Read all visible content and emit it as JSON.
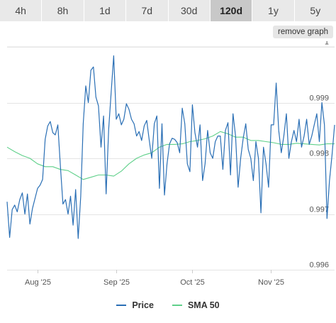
{
  "tabs": [
    {
      "label": "4h",
      "active": false
    },
    {
      "label": "8h",
      "active": false
    },
    {
      "label": "1d",
      "active": false
    },
    {
      "label": "7d",
      "active": false
    },
    {
      "label": "30d",
      "active": false
    },
    {
      "label": "120d",
      "active": true
    },
    {
      "label": "1y",
      "active": false
    },
    {
      "label": "5y",
      "active": false
    }
  ],
  "remove_graph_label": "remove graph",
  "legend": {
    "price_label": "Price",
    "sma_label": "SMA 50"
  },
  "colors": {
    "price": "#2a6fb5",
    "sma": "#5fd08a",
    "grid": "#e4e4e4"
  },
  "chart_data": {
    "type": "line",
    "title": "",
    "xlabel": "",
    "ylabel": "",
    "ylim": [
      0.996,
      1.0
    ],
    "y_ticks": [
      {
        "value": 1.0,
        "label": "1"
      },
      {
        "value": 0.999,
        "label": "0.999"
      },
      {
        "value": 0.998,
        "label": "0.998"
      },
      {
        "value": 0.997,
        "label": "0.997"
      },
      {
        "value": 0.996,
        "label": "0.996"
      }
    ],
    "x_range": [
      "2025-07-20",
      "2025-11-26"
    ],
    "x_ticks": [
      {
        "date": "2025-08-01",
        "label": "Aug '25"
      },
      {
        "date": "2025-09-01",
        "label": "Sep '25"
      },
      {
        "date": "2025-10-01",
        "label": "Oct '25"
      },
      {
        "date": "2025-11-01",
        "label": "Nov '25"
      }
    ],
    "grid": true,
    "legend_position": "bottom",
    "series": [
      {
        "name": "Price",
        "points": [
          [
            "2025-07-20",
            0.99722
          ],
          [
            "2025-07-21",
            0.99658
          ],
          [
            "2025-07-22",
            0.99708
          ],
          [
            "2025-07-23",
            0.99716
          ],
          [
            "2025-07-24",
            0.99704
          ],
          [
            "2025-07-25",
            0.99726
          ],
          [
            "2025-07-26",
            0.99738
          ],
          [
            "2025-07-27",
            0.997
          ],
          [
            "2025-07-28",
            0.99736
          ],
          [
            "2025-07-29",
            0.99682
          ],
          [
            "2025-07-30",
            0.9971
          ],
          [
            "2025-07-31",
            0.99728
          ],
          [
            "2025-08-01",
            0.99746
          ],
          [
            "2025-08-02",
            0.99752
          ],
          [
            "2025-08-03",
            0.99762
          ],
          [
            "2025-08-04",
            0.99834
          ],
          [
            "2025-08-05",
            0.99858
          ],
          [
            "2025-08-06",
            0.99866
          ],
          [
            "2025-08-07",
            0.99846
          ],
          [
            "2025-08-08",
            0.99842
          ],
          [
            "2025-08-09",
            0.9986
          ],
          [
            "2025-08-10",
            0.99786
          ],
          [
            "2025-08-11",
            0.99718
          ],
          [
            "2025-08-12",
            0.99726
          ],
          [
            "2025-08-13",
            0.997
          ],
          [
            "2025-08-14",
            0.99732
          ],
          [
            "2025-08-15",
            0.9968
          ],
          [
            "2025-08-16",
            0.99744
          ],
          [
            "2025-08-17",
            0.99656
          ],
          [
            "2025-08-18",
            0.99732
          ],
          [
            "2025-08-19",
            0.99862
          ],
          [
            "2025-08-20",
            0.9993
          ],
          [
            "2025-08-21",
            0.999
          ],
          [
            "2025-08-22",
            0.99958
          ],
          [
            "2025-08-23",
            0.99964
          ],
          [
            "2025-08-24",
            0.9991
          ],
          [
            "2025-08-25",
            0.99894
          ],
          [
            "2025-08-26",
            0.9982
          ],
          [
            "2025-08-27",
            0.99876
          ],
          [
            "2025-08-28",
            0.99736
          ],
          [
            "2025-08-29",
            0.99852
          ],
          [
            "2025-08-30",
            0.99918
          ],
          [
            "2025-08-31",
            0.99984
          ],
          [
            "2025-09-01",
            0.9987
          ],
          [
            "2025-09-02",
            0.9988
          ],
          [
            "2025-09-03",
            0.9986
          ],
          [
            "2025-09-04",
            0.9987
          ],
          [
            "2025-09-05",
            0.99898
          ],
          [
            "2025-09-06",
            0.99888
          ],
          [
            "2025-09-07",
            0.9987
          ],
          [
            "2025-09-08",
            0.99862
          ],
          [
            "2025-09-09",
            0.9984
          ],
          [
            "2025-09-10",
            0.99848
          ],
          [
            "2025-09-11",
            0.99832
          ],
          [
            "2025-09-12",
            0.99858
          ],
          [
            "2025-09-13",
            0.99868
          ],
          [
            "2025-09-14",
            0.99832
          ],
          [
            "2025-09-15",
            0.998
          ],
          [
            "2025-09-16",
            0.99862
          ],
          [
            "2025-09-17",
            0.99876
          ],
          [
            "2025-09-18",
            0.99746
          ],
          [
            "2025-09-19",
            0.99862
          ],
          [
            "2025-09-20",
            0.99734
          ],
          [
            "2025-09-21",
            0.9979
          ],
          [
            "2025-09-22",
            0.99826
          ],
          [
            "2025-09-23",
            0.99836
          ],
          [
            "2025-09-24",
            0.99834
          ],
          [
            "2025-09-25",
            0.99828
          ],
          [
            "2025-09-26",
            0.9981
          ],
          [
            "2025-09-27",
            0.9989
          ],
          [
            "2025-09-28",
            0.99862
          ],
          [
            "2025-09-29",
            0.9979
          ],
          [
            "2025-09-30",
            0.99776
          ],
          [
            "2025-10-01",
            0.99896
          ],
          [
            "2025-10-02",
            0.99846
          ],
          [
            "2025-10-03",
            0.9982
          ],
          [
            "2025-10-04",
            0.9986
          ],
          [
            "2025-10-05",
            0.9976
          ],
          [
            "2025-10-06",
            0.9979
          ],
          [
            "2025-10-07",
            0.9985
          ],
          [
            "2025-10-08",
            0.9981
          ],
          [
            "2025-10-09",
            0.998
          ],
          [
            "2025-10-10",
            0.9983
          ],
          [
            "2025-10-11",
            0.9984
          ],
          [
            "2025-10-12",
            0.9984
          ],
          [
            "2025-10-13",
            0.9978
          ],
          [
            "2025-10-14",
            0.9985
          ],
          [
            "2025-10-15",
            0.99864
          ],
          [
            "2025-10-16",
            0.9977
          ],
          [
            "2025-10-17",
            0.9988
          ],
          [
            "2025-10-18",
            0.9984
          ],
          [
            "2025-10-19",
            0.99748
          ],
          [
            "2025-10-20",
            0.998
          ],
          [
            "2025-10-21",
            0.99836
          ],
          [
            "2025-10-22",
            0.99862
          ],
          [
            "2025-10-23",
            0.99816
          ],
          [
            "2025-10-24",
            0.998
          ],
          [
            "2025-10-25",
            0.9976
          ],
          [
            "2025-10-26",
            0.9983
          ],
          [
            "2025-10-27",
            0.998
          ],
          [
            "2025-10-28",
            0.99702
          ],
          [
            "2025-10-29",
            0.9982
          ],
          [
            "2025-10-30",
            0.9979
          ],
          [
            "2025-10-31",
            0.99748
          ],
          [
            "2025-11-01",
            0.9986
          ],
          [
            "2025-11-02",
            0.9986
          ],
          [
            "2025-11-03",
            0.99935
          ],
          [
            "2025-11-04",
            0.9985
          ],
          [
            "2025-11-05",
            0.9981
          ],
          [
            "2025-11-06",
            0.9984
          ],
          [
            "2025-11-07",
            0.9988
          ],
          [
            "2025-11-08",
            0.998
          ],
          [
            "2025-11-09",
            0.9983
          ],
          [
            "2025-11-10",
            0.9985
          ],
          [
            "2025-11-11",
            0.9983
          ],
          [
            "2025-11-12",
            0.9987
          ],
          [
            "2025-11-13",
            0.9982
          ],
          [
            "2025-11-14",
            0.9984
          ],
          [
            "2025-11-15",
            0.9987
          ],
          [
            "2025-11-16",
            0.99825
          ],
          [
            "2025-11-17",
            0.9984
          ],
          [
            "2025-11-18",
            0.9986
          ],
          [
            "2025-11-19",
            0.9988
          ],
          [
            "2025-11-20",
            0.9983
          ],
          [
            "2025-11-21",
            0.999
          ],
          [
            "2025-11-22",
            0.9986
          ],
          [
            "2025-11-23",
            0.99692
          ],
          [
            "2025-11-24",
            0.9976
          ],
          [
            "2025-11-25",
            0.99806
          ],
          [
            "2025-11-26",
            0.9986
          ]
        ]
      },
      {
        "name": "SMA 50",
        "points": [
          [
            "2025-07-20",
            0.9982
          ],
          [
            "2025-07-23",
            0.99812
          ],
          [
            "2025-07-26",
            0.99805
          ],
          [
            "2025-07-29",
            0.998
          ],
          [
            "2025-08-01",
            0.9979
          ],
          [
            "2025-08-04",
            0.99785
          ],
          [
            "2025-08-07",
            0.99785
          ],
          [
            "2025-08-10",
            0.9978
          ],
          [
            "2025-08-13",
            0.99778
          ],
          [
            "2025-08-16",
            0.9977
          ],
          [
            "2025-08-19",
            0.99762
          ],
          [
            "2025-08-22",
            0.99766
          ],
          [
            "2025-08-25",
            0.9977
          ],
          [
            "2025-08-28",
            0.9977
          ],
          [
            "2025-08-31",
            0.99768
          ],
          [
            "2025-09-03",
            0.99777
          ],
          [
            "2025-09-06",
            0.9979
          ],
          [
            "2025-09-09",
            0.998
          ],
          [
            "2025-09-12",
            0.99806
          ],
          [
            "2025-09-15",
            0.9981
          ],
          [
            "2025-09-18",
            0.9982
          ],
          [
            "2025-09-21",
            0.99825
          ],
          [
            "2025-09-24",
            0.99825
          ],
          [
            "2025-09-27",
            0.99826
          ],
          [
            "2025-09-30",
            0.9983
          ],
          [
            "2025-10-03",
            0.99832
          ],
          [
            "2025-10-06",
            0.99835
          ],
          [
            "2025-10-09",
            0.9984
          ],
          [
            "2025-10-12",
            0.99848
          ],
          [
            "2025-10-15",
            0.99844
          ],
          [
            "2025-10-18",
            0.99838
          ],
          [
            "2025-10-21",
            0.99838
          ],
          [
            "2025-10-24",
            0.99832
          ],
          [
            "2025-10-27",
            0.99832
          ],
          [
            "2025-10-30",
            0.9983
          ],
          [
            "2025-11-02",
            0.99828
          ],
          [
            "2025-11-05",
            0.99825
          ],
          [
            "2025-11-08",
            0.99825
          ],
          [
            "2025-11-11",
            0.99827
          ],
          [
            "2025-11-14",
            0.99826
          ],
          [
            "2025-11-17",
            0.99825
          ],
          [
            "2025-11-20",
            0.99824
          ],
          [
            "2025-11-23",
            0.99826
          ],
          [
            "2025-11-26",
            0.99826
          ]
        ]
      }
    ]
  }
}
